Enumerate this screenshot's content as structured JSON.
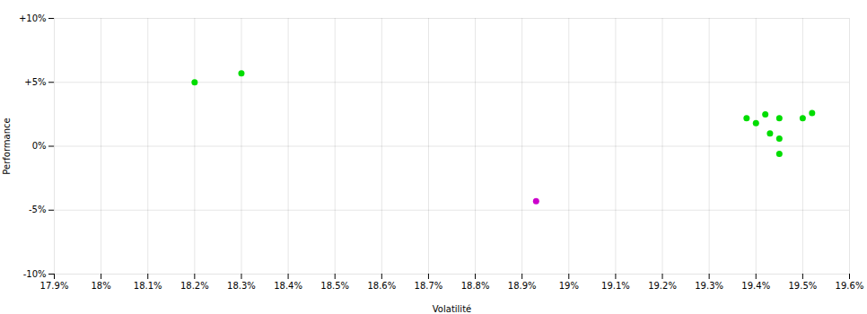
{
  "chart_data": {
    "type": "scatter",
    "xlabel": "Volatilité",
    "ylabel": "Performance",
    "xlim": [
      0.179,
      0.196
    ],
    "ylim": [
      -0.1,
      0.1
    ],
    "xticks": [
      {
        "value": 0.179,
        "label": "17.9%"
      },
      {
        "value": 0.18,
        "label": "18%"
      },
      {
        "value": 0.181,
        "label": "18.1%"
      },
      {
        "value": 0.182,
        "label": "18.2%"
      },
      {
        "value": 0.183,
        "label": "18.3%"
      },
      {
        "value": 0.184,
        "label": "18.4%"
      },
      {
        "value": 0.185,
        "label": "18.5%"
      },
      {
        "value": 0.186,
        "label": "18.6%"
      },
      {
        "value": 0.187,
        "label": "18.7%"
      },
      {
        "value": 0.188,
        "label": "18.8%"
      },
      {
        "value": 0.189,
        "label": "18.9%"
      },
      {
        "value": 0.19,
        "label": "19%"
      },
      {
        "value": 0.191,
        "label": "19.1%"
      },
      {
        "value": 0.192,
        "label": "19.2%"
      },
      {
        "value": 0.193,
        "label": "19.3%"
      },
      {
        "value": 0.194,
        "label": "19.4%"
      },
      {
        "value": 0.195,
        "label": "19.5%"
      },
      {
        "value": 0.196,
        "label": "19.6%"
      }
    ],
    "yticks": [
      {
        "value": 0.1,
        "label": "+10%"
      },
      {
        "value": 0.05,
        "label": "+5%"
      },
      {
        "value": 0.0,
        "label": "0%"
      },
      {
        "value": -0.05,
        "label": "-5%"
      },
      {
        "value": -0.1,
        "label": "-10%"
      }
    ],
    "grid": true,
    "series": [
      {
        "color": "#00dd00",
        "x": [
          0.182,
          0.183,
          0.1938,
          0.194,
          0.1942,
          0.1945,
          0.1943,
          0.1945,
          0.1945,
          0.195,
          0.1952
        ],
        "values": [
          0.05,
          0.057,
          0.022,
          0.018,
          0.025,
          0.022,
          0.01,
          0.006,
          -0.006,
          0.022,
          0.026
        ]
      },
      {
        "color": "#cc00cc",
        "x": [
          0.1893
        ],
        "values": [
          -0.043
        ]
      }
    ]
  }
}
